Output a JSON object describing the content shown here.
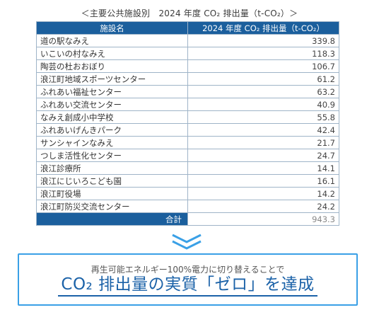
{
  "caption": "＜主要公共施設別　2024 年度 CO₂ 排出量（t-CO₂）＞",
  "table": {
    "headers": [
      "施設名",
      "2024 年度 CO₂ 排出量（t-CO₂）"
    ],
    "rows": [
      {
        "name": "道の駅なみえ",
        "value": "339.8"
      },
      {
        "name": "いこいの村なみえ",
        "value": "118.3"
      },
      {
        "name": "陶芸の杜おおぼり",
        "value": "106.7"
      },
      {
        "name": "浪江町地域スポーツセンター",
        "value": "61.2"
      },
      {
        "name": "ふれあい福祉センター",
        "value": "63.2"
      },
      {
        "name": "ふれあい交流センター",
        "value": "40.9"
      },
      {
        "name": "なみえ創成小中学校",
        "value": "55.8"
      },
      {
        "name": "ふれあいげんきパーク",
        "value": "42.4"
      },
      {
        "name": "サンシャインなみえ",
        "value": "21.7"
      },
      {
        "name": "つしま活性化センター",
        "value": "24.7"
      },
      {
        "name": "浪江診療所",
        "value": "14.1"
      },
      {
        "name": "浪江にじいろこども園",
        "value": "16.1"
      },
      {
        "name": "浪江町役場",
        "value": "14.2"
      },
      {
        "name": "浪江町防災交流センター",
        "value": "24.2"
      }
    ],
    "total_label": "合計",
    "total_value": "943.3"
  },
  "message": {
    "subtitle": "再生可能エネルギー100%電力に切り替えることで",
    "headline": "CO₂ 排出量の実質「ゼロ」を達成"
  },
  "colors": {
    "header_bg": "#1b5f9d",
    "box_border": "#3aa0e6",
    "headline_text": "#1b62a8"
  }
}
